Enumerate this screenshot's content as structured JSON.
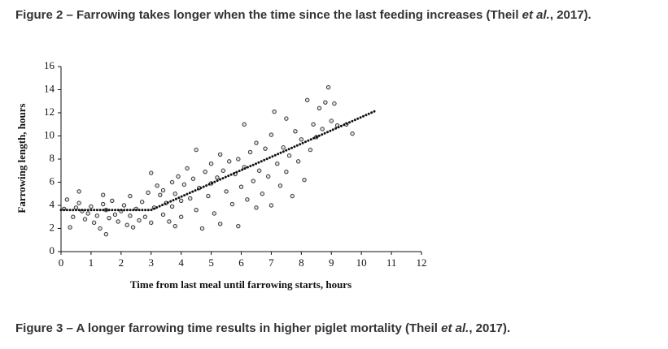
{
  "figure2_caption": {
    "parts": [
      "Figure 2 – Farrowing takes longer when the time since the last feeding increases (Theil ",
      "et al.",
      ", 2017)."
    ]
  },
  "chart_data": {
    "type": "scatter",
    "x_label": "Time from last meal until farrowing starts, hours",
    "y_label": "Farrowing length, hours",
    "xlim": [
      0,
      12
    ],
    "ylim": [
      0,
      16
    ],
    "xticks": [
      0,
      1,
      2,
      3,
      4,
      5,
      6,
      7,
      8,
      9,
      10,
      11,
      12
    ],
    "yticks": [
      0,
      2,
      4,
      6,
      8,
      10,
      12,
      14,
      16
    ],
    "series": [
      {
        "type": "scatter",
        "color": "#333333",
        "x": [
          0.1,
          0.2,
          0.3,
          0.4,
          0.5,
          0.6,
          0.6,
          0.7,
          0.8,
          0.9,
          1.0,
          1.1,
          1.2,
          1.3,
          1.4,
          1.4,
          1.5,
          1.5,
          1.6,
          1.7,
          1.8,
          1.9,
          2.0,
          2.1,
          2.2,
          2.3,
          2.3,
          2.4,
          2.5,
          2.6,
          2.7,
          2.8,
          2.9,
          3.0,
          3.0,
          3.1,
          3.2,
          3.3,
          3.4,
          3.4,
          3.5,
          3.6,
          3.7,
          3.7,
          3.8,
          3.8,
          3.9,
          4.0,
          4.0,
          4.1,
          4.2,
          4.3,
          4.4,
          4.5,
          4.5,
          4.6,
          4.7,
          4.8,
          4.9,
          5.0,
          5.0,
          5.1,
          5.2,
          5.3,
          5.3,
          5.4,
          5.5,
          5.6,
          5.7,
          5.8,
          5.9,
          5.9,
          6.0,
          6.1,
          6.1,
          6.2,
          6.3,
          6.4,
          6.5,
          6.5,
          6.6,
          6.7,
          6.8,
          6.9,
          7.0,
          7.0,
          7.1,
          7.2,
          7.3,
          7.4,
          7.5,
          7.5,
          7.6,
          7.7,
          7.8,
          7.9,
          8.0,
          8.1,
          8.2,
          8.3,
          8.4,
          8.5,
          8.6,
          8.7,
          8.8,
          8.9,
          9.0,
          9.1,
          9.2,
          9.5,
          9.7
        ],
        "values": [
          3.7,
          4.5,
          2.1,
          3.0,
          3.8,
          4.2,
          5.2,
          3.5,
          2.8,
          3.3,
          3.9,
          2.5,
          3.1,
          2.0,
          4.1,
          4.9,
          1.5,
          3.6,
          2.9,
          4.4,
          3.2,
          2.6,
          3.5,
          4.0,
          2.3,
          4.8,
          3.1,
          2.1,
          3.7,
          2.7,
          4.3,
          3.0,
          5.1,
          6.8,
          2.5,
          3.8,
          5.7,
          4.9,
          3.2,
          5.3,
          4.2,
          2.6,
          6.0,
          3.9,
          2.2,
          5.0,
          6.5,
          4.4,
          3.0,
          5.8,
          7.2,
          4.6,
          6.3,
          8.8,
          3.6,
          5.5,
          2.0,
          6.9,
          4.8,
          7.6,
          5.9,
          3.3,
          6.4,
          8.4,
          2.4,
          7.0,
          5.2,
          7.8,
          4.1,
          6.7,
          8.0,
          2.2,
          5.6,
          7.3,
          11.0,
          4.5,
          8.6,
          6.1,
          3.8,
          9.4,
          7.0,
          5.0,
          8.9,
          6.5,
          10.1,
          4.0,
          12.1,
          7.6,
          5.7,
          9.0,
          11.5,
          6.9,
          8.3,
          4.8,
          10.4,
          7.8,
          9.7,
          6.2,
          13.1,
          8.8,
          11.0,
          9.9,
          12.4,
          10.6,
          12.9,
          14.2,
          11.3,
          12.8,
          10.9,
          11.0,
          10.2
        ]
      },
      {
        "type": "line",
        "color": "#111111",
        "x": [
          0,
          3,
          10.5
        ],
        "values": [
          3.6,
          3.6,
          12.2
        ]
      }
    ]
  },
  "figure3_caption": {
    "parts": [
      "Figure 3 – A longer farrowing time results in higher piglet mortality (Theil ",
      "et al.",
      ", 2017)."
    ]
  }
}
